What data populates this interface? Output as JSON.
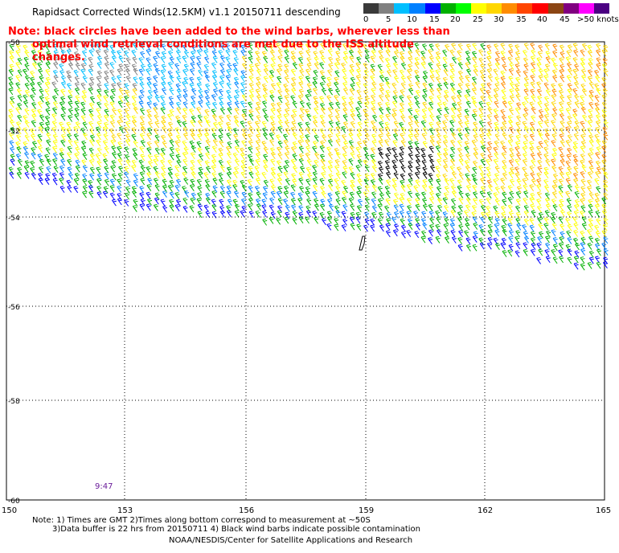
{
  "title": "Rapidsact Corrected Winds(12.5KM) v1.1 20150711 descending",
  "note_line1": "Note: black circles have been added to the wind barbs, wherever less than",
  "note_line2": "optimal wind retrieval conditions are met due to the ISS altitude changes.",
  "legend": {
    "colors": [
      "#3a3a3a",
      "#808080",
      "#00bfff",
      "#0080ff",
      "#0000ff",
      "#00b000",
      "#00ff00",
      "#ffff00",
      "#ffd700",
      "#ff8c00",
      "#ff4500",
      "#ff0000",
      "#8b4513",
      "#800080",
      "#ff00ff",
      "#4b0082"
    ],
    "labels": [
      "0",
      "5",
      "10",
      "15",
      "20",
      "25",
      "30",
      "35",
      "40",
      "45",
      ">50 knots"
    ]
  },
  "axes": {
    "lat_labels": [
      "-50",
      "-52",
      "-54",
      "-56",
      "-58",
      "-60"
    ],
    "lon_labels": [
      "150",
      "153",
      "156",
      "159",
      "162",
      "165"
    ]
  },
  "time_label": "9:47",
  "footnote_line1": "Note: 1) Times are GMT 2)Times along bottom correspond to measurement at ~50S",
  "footnote_line2": "3)Data buffer is 22 hrs from 20150711 4) Black wind barbs indicate possible contamination",
  "credit": "NOAA/NESDIS/Center for Satellite Applications and Research"
}
